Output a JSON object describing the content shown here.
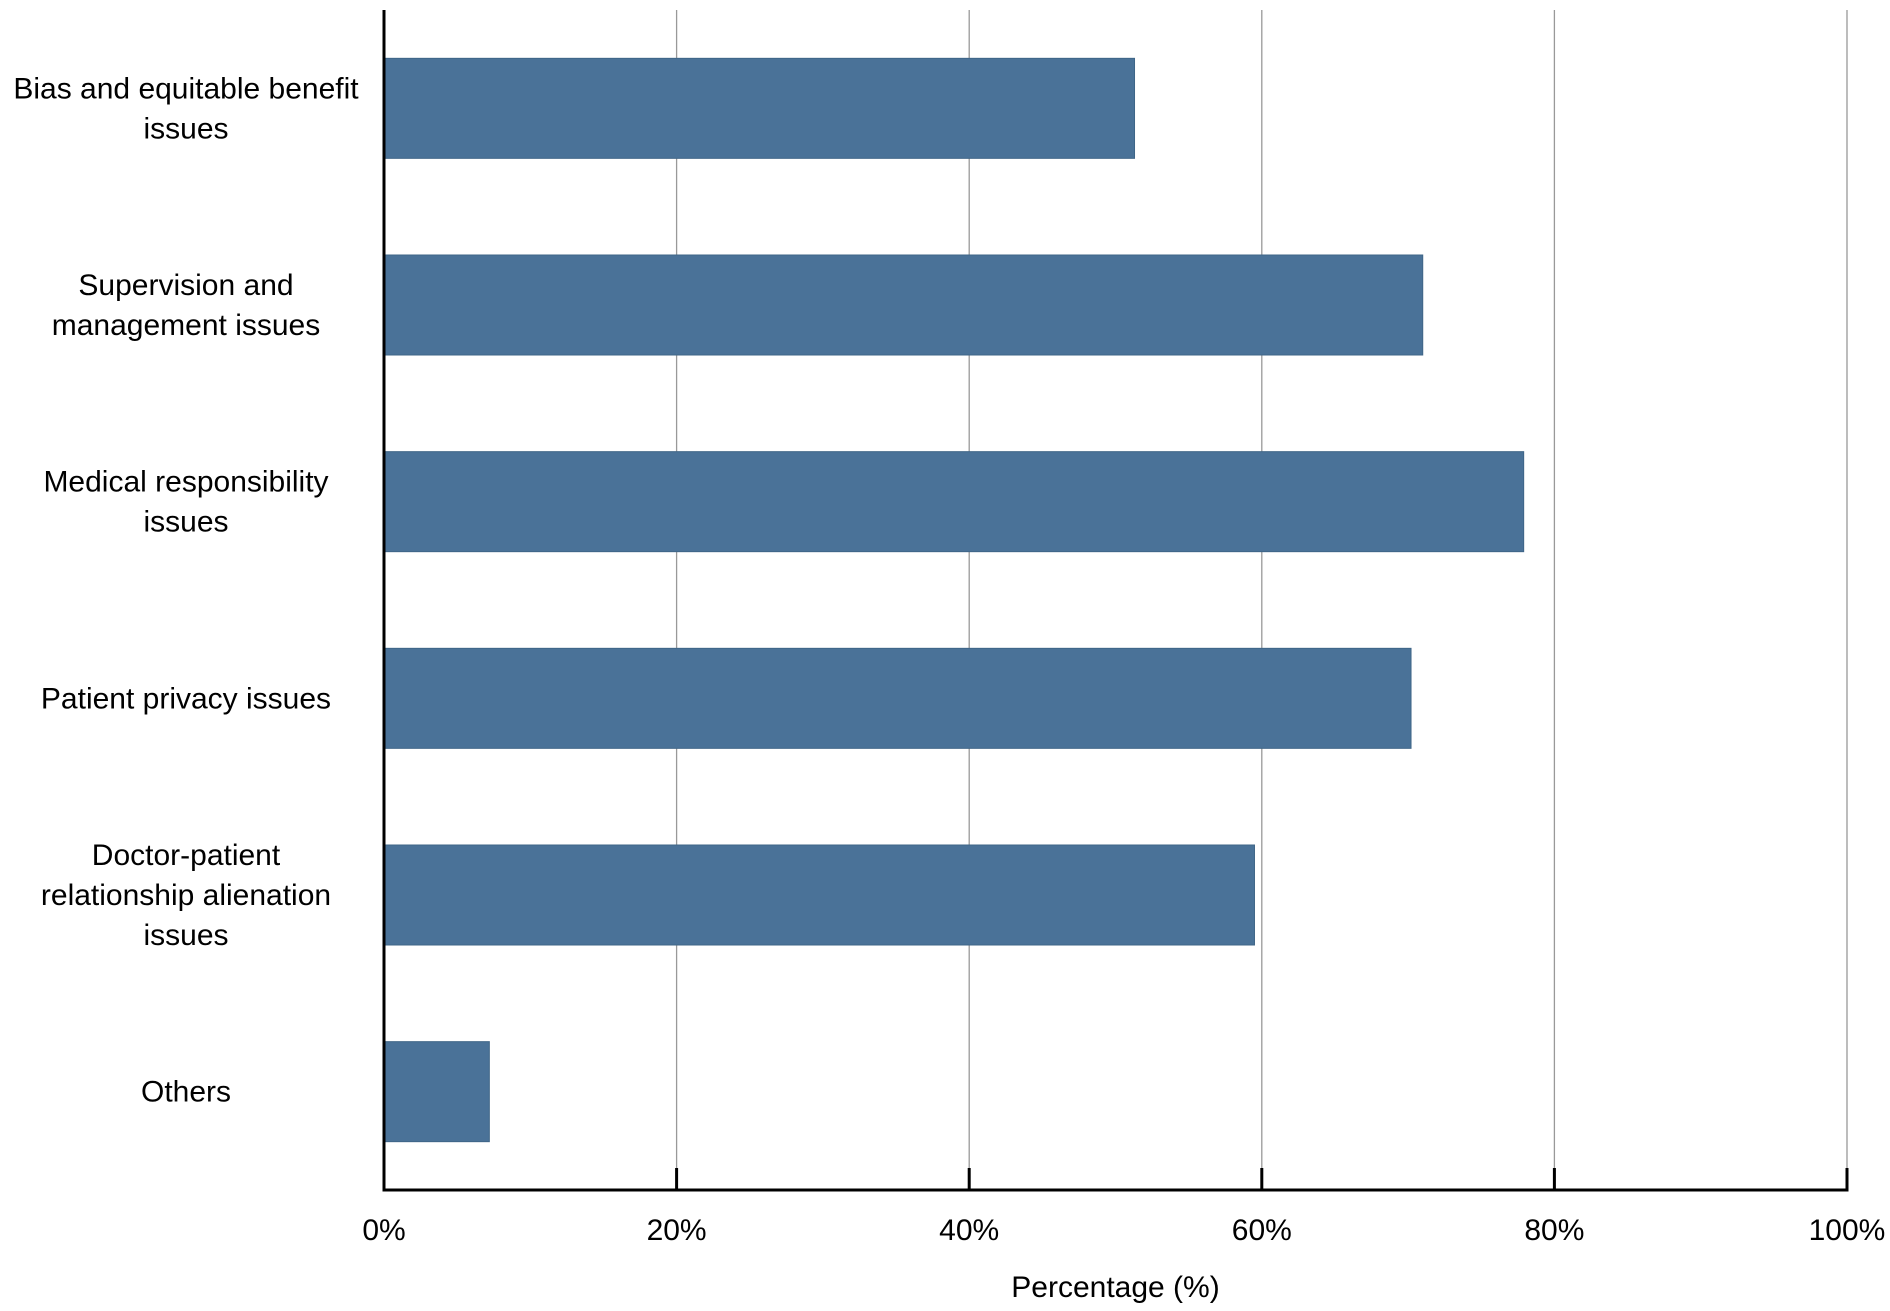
{
  "chart_data": {
    "type": "bar",
    "orientation": "horizontal",
    "categories": [
      "Bias and equitable benefit issues",
      "Supervision and management issues",
      "Medical responsibility issues",
      "Patient privacy issues",
      "Doctor-patient relationship alienation issues",
      "Others"
    ],
    "category_label_lines": [
      [
        "Bias and equitable benefit",
        "issues"
      ],
      [
        "Supervision and",
        "management issues"
      ],
      [
        "Medical responsibility",
        "issues"
      ],
      [
        "Patient privacy issues"
      ],
      [
        "Doctor-patient",
        "relationship alienation",
        "issues"
      ],
      [
        "Others"
      ]
    ],
    "values": [
      51.3,
      71.0,
      77.9,
      70.2,
      59.5,
      7.2
    ],
    "xlabel": "Percentage (%)",
    "ylabel": "",
    "xlim": [
      0,
      100
    ],
    "x_ticks": [
      0,
      20,
      40,
      60,
      80,
      100
    ],
    "x_tick_labels": [
      "0%",
      "20%",
      "40%",
      "60%",
      "80%",
      "100%"
    ],
    "grid": "vertical",
    "legend": "none",
    "bar_color": "#4a7298",
    "grid_color": "#999999",
    "axis_color": "#000000"
  }
}
